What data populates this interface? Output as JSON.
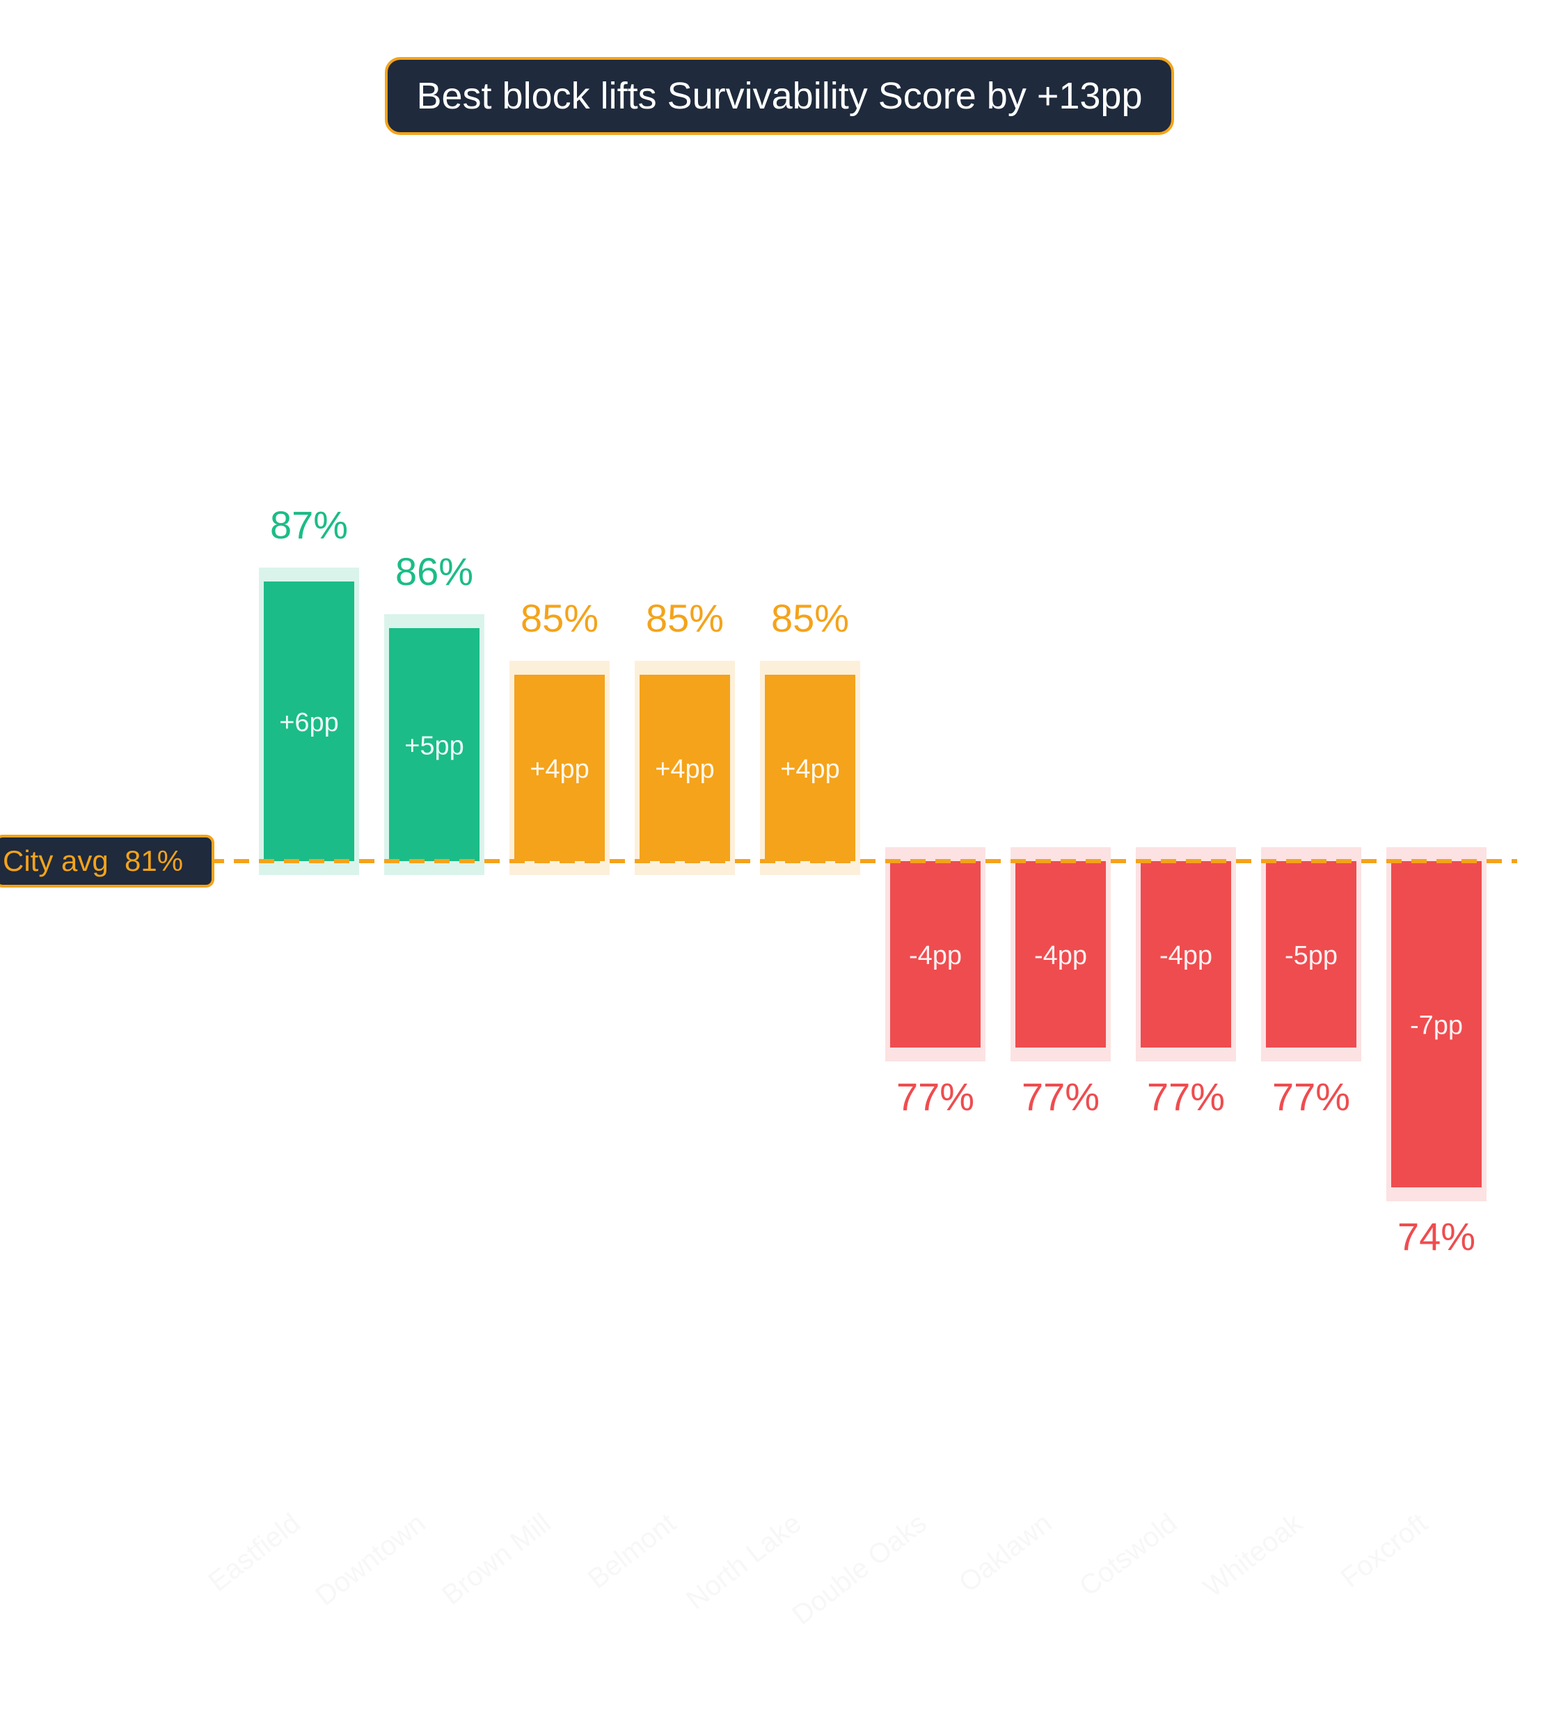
{
  "chart_data": {
    "type": "bar",
    "title": "Best block lifts Survivability Score by +13pp",
    "xlabel": "",
    "ylabel": "",
    "categories": [
      "Eastfield",
      "Downtown",
      "Brown Mill",
      "Belmont",
      "North Lake",
      "Double Oaks",
      "Oaklawn",
      "Cotswold",
      "Whiteoak",
      "Foxcroft"
    ],
    "values": [
      87,
      86,
      85,
      85,
      85,
      77,
      77,
      77,
      77,
      74
    ],
    "value_labels": [
      "87%",
      "86%",
      "85%",
      "85%",
      "85%",
      "77%",
      "77%",
      "77%",
      "77%",
      "74%"
    ],
    "delta_labels": [
      "+6pp",
      "+5pp",
      "+4pp",
      "+4pp",
      "+4pp",
      "-4pp",
      "-4pp",
      "-4pp",
      "-5pp",
      "-7pp"
    ],
    "reference_line": {
      "label": "City avg  81%",
      "value": 81
    },
    "grid": false,
    "legend": "none",
    "colors": {
      "high": "#1bbc87",
      "mid": "#f4a31b",
      "low": "#ef4c4f",
      "dark": "#1f2a3c"
    }
  }
}
